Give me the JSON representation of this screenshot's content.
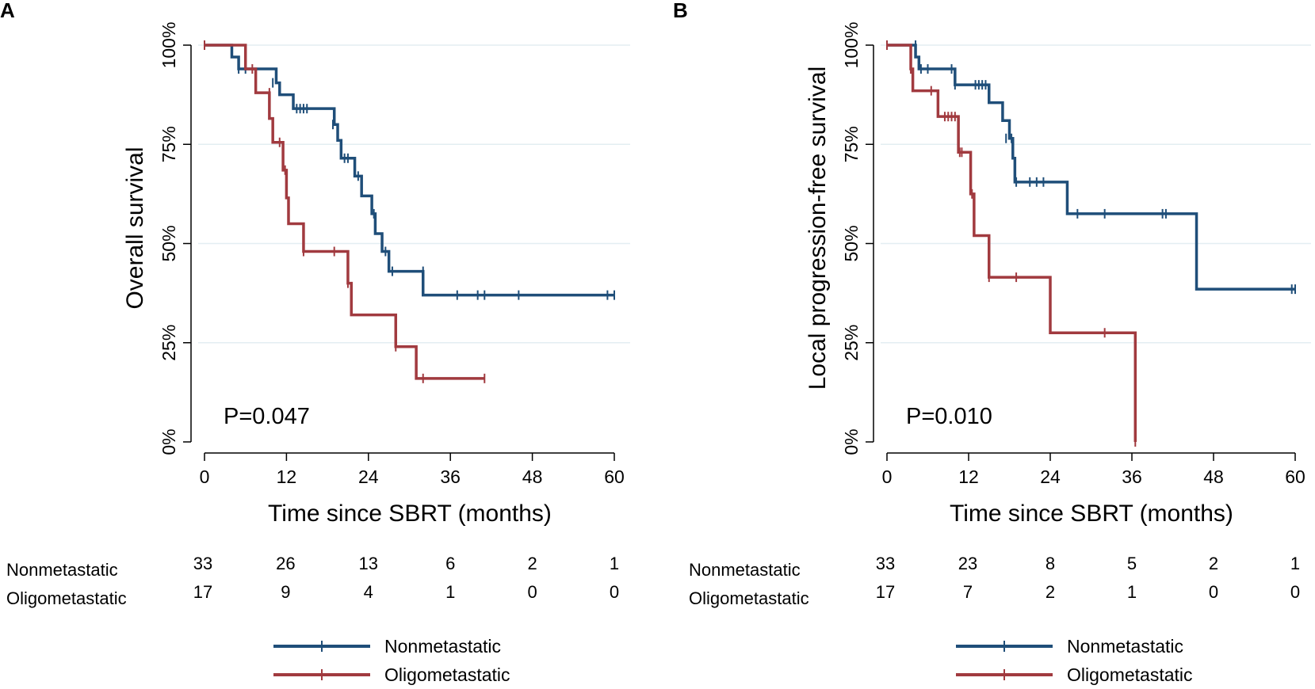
{
  "figure": {
    "risk_rows": [
      "Nonmetastatic",
      "Oligometastatic"
    ],
    "legend": [
      {
        "label": "Nonmetastatic",
        "color": "#1F4E79"
      },
      {
        "label": "Oligometastatic",
        "color": "#A13A3F"
      }
    ]
  },
  "chart_data": [
    {
      "type": "line",
      "step": true,
      "panel": "A",
      "xlabel": "Time since SBRT (months)",
      "ylabel": "Overall survival",
      "xlim": [
        0,
        60
      ],
      "xticks": [
        0,
        12,
        24,
        36,
        48,
        60
      ],
      "ylim": [
        0,
        1
      ],
      "yticks": [
        0,
        0.25,
        0.5,
        0.75,
        1
      ],
      "ytick_labels": [
        "0%",
        "25%",
        "50%",
        "75%",
        "100%"
      ],
      "grid": true,
      "annotation": "P=0.047",
      "series": [
        {
          "name": "Nonmetastatic",
          "color": "#1F4E79",
          "steps": [
            [
              0,
              1.0
            ],
            [
              4,
              0.97
            ],
            [
              5,
              0.94
            ],
            [
              10.5,
              0.905
            ],
            [
              11,
              0.875
            ],
            [
              13,
              0.84
            ],
            [
              19,
              0.8
            ],
            [
              19.5,
              0.76
            ],
            [
              20,
              0.715
            ],
            [
              22,
              0.67
            ],
            [
              23,
              0.62
            ],
            [
              24.5,
              0.575
            ],
            [
              25,
              0.525
            ],
            [
              26,
              0.48
            ],
            [
              27,
              0.43
            ],
            [
              32,
              0.37
            ],
            [
              60,
              0.37
            ]
          ],
          "censored": [
            [
              5,
              0.94
            ],
            [
              6,
              0.94
            ],
            [
              10,
              0.905
            ],
            [
              13.5,
              0.84
            ],
            [
              14,
              0.84
            ],
            [
              14.5,
              0.84
            ],
            [
              15,
              0.84
            ],
            [
              18.8,
              0.8
            ],
            [
              20.5,
              0.715
            ],
            [
              21,
              0.715
            ],
            [
              22.5,
              0.67
            ],
            [
              24.8,
              0.575
            ],
            [
              26.5,
              0.48
            ],
            [
              27.5,
              0.43
            ],
            [
              32,
              0.43
            ],
            [
              37,
              0.37
            ],
            [
              40,
              0.37
            ],
            [
              41,
              0.37
            ],
            [
              46,
              0.37
            ],
            [
              59,
              0.37
            ],
            [
              60,
              0.37
            ]
          ]
        },
        {
          "name": "Oligometastatic",
          "color": "#A13A3F",
          "steps": [
            [
              0,
              1.0
            ],
            [
              6,
              0.94
            ],
            [
              7.5,
              0.88
            ],
            [
              9.5,
              0.815
            ],
            [
              10,
              0.755
            ],
            [
              11.5,
              0.685
            ],
            [
              12,
              0.615
            ],
            [
              12.3,
              0.55
            ],
            [
              14.5,
              0.48
            ],
            [
              21,
              0.4
            ],
            [
              21.5,
              0.32
            ],
            [
              28,
              0.24
            ],
            [
              31,
              0.16
            ],
            [
              41,
              0.16
            ]
          ],
          "censored": [
            [
              0,
              1.0
            ],
            [
              7,
              0.94
            ],
            [
              9.5,
              0.88
            ],
            [
              11,
              0.755
            ],
            [
              11.8,
              0.685
            ],
            [
              14.5,
              0.48
            ],
            [
              19,
              0.48
            ],
            [
              21,
              0.4
            ],
            [
              28,
              0.24
            ],
            [
              32,
              0.16
            ],
            [
              41,
              0.16
            ]
          ]
        }
      ],
      "risk_table": {
        "Nonmetastatic": [
          33,
          26,
          13,
          6,
          2,
          1
        ],
        "Oligometastatic": [
          17,
          9,
          4,
          1,
          0,
          0
        ]
      }
    },
    {
      "type": "line",
      "step": true,
      "panel": "B",
      "xlabel": "Time since SBRT (months)",
      "ylabel": "Local progression-free survival",
      "xlim": [
        0,
        60
      ],
      "xticks": [
        0,
        12,
        24,
        36,
        48,
        60
      ],
      "ylim": [
        0,
        1
      ],
      "yticks": [
        0,
        0.25,
        0.5,
        0.75,
        1
      ],
      "ytick_labels": [
        "0%",
        "25%",
        "50%",
        "75%",
        "100%"
      ],
      "grid": true,
      "annotation": "P=0.010",
      "series": [
        {
          "name": "Nonmetastatic",
          "color": "#1F4E79",
          "steps": [
            [
              0,
              1.0
            ],
            [
              4.2,
              0.97
            ],
            [
              4.7,
              0.94
            ],
            [
              10,
              0.9
            ],
            [
              15,
              0.855
            ],
            [
              17,
              0.81
            ],
            [
              18,
              0.765
            ],
            [
              18.5,
              0.715
            ],
            [
              18.8,
              0.655
            ],
            [
              26.5,
              0.575
            ],
            [
              45.5,
              0.385
            ],
            [
              60,
              0.385
            ]
          ],
          "censored": [
            [
              4.2,
              1.0
            ],
            [
              5,
              0.94
            ],
            [
              6,
              0.94
            ],
            [
              9.5,
              0.94
            ],
            [
              10,
              0.9
            ],
            [
              13,
              0.9
            ],
            [
              13.5,
              0.9
            ],
            [
              14,
              0.9
            ],
            [
              14.5,
              0.9
            ],
            [
              17.5,
              0.765
            ],
            [
              18.3,
              0.765
            ],
            [
              19,
              0.655
            ],
            [
              21,
              0.655
            ],
            [
              22,
              0.655
            ],
            [
              23,
              0.655
            ],
            [
              28,
              0.575
            ],
            [
              32,
              0.575
            ],
            [
              40.5,
              0.575
            ],
            [
              41,
              0.575
            ],
            [
              60,
              0.385
            ],
            [
              59.5,
              0.385
            ]
          ]
        },
        {
          "name": "Oligometastatic",
          "color": "#A13A3F",
          "steps": [
            [
              0,
              1.0
            ],
            [
              3.5,
              0.94
            ],
            [
              3.8,
              0.885
            ],
            [
              7.5,
              0.82
            ],
            [
              10.5,
              0.73
            ],
            [
              12.3,
              0.625
            ],
            [
              12.8,
              0.52
            ],
            [
              15,
              0.415
            ],
            [
              24,
              0.275
            ],
            [
              36.5,
              0
            ],
            [
              36.5,
              0
            ]
          ],
          "censored": [
            [
              0,
              1.0
            ],
            [
              3.5,
              0.94
            ],
            [
              6.5,
              0.885
            ],
            [
              8.5,
              0.82
            ],
            [
              9,
              0.82
            ],
            [
              9.5,
              0.82
            ],
            [
              10,
              0.82
            ],
            [
              10.7,
              0.73
            ],
            [
              11,
              0.73
            ],
            [
              12.5,
              0.625
            ],
            [
              15,
              0.415
            ],
            [
              19,
              0.415
            ],
            [
              32,
              0.275
            ],
            [
              36.5,
              0
            ]
          ]
        }
      ],
      "risk_table": {
        "Nonmetastatic": [
          33,
          23,
          8,
          5,
          2,
          1
        ],
        "Oligometastatic": [
          17,
          7,
          2,
          1,
          0,
          0
        ]
      }
    }
  ]
}
